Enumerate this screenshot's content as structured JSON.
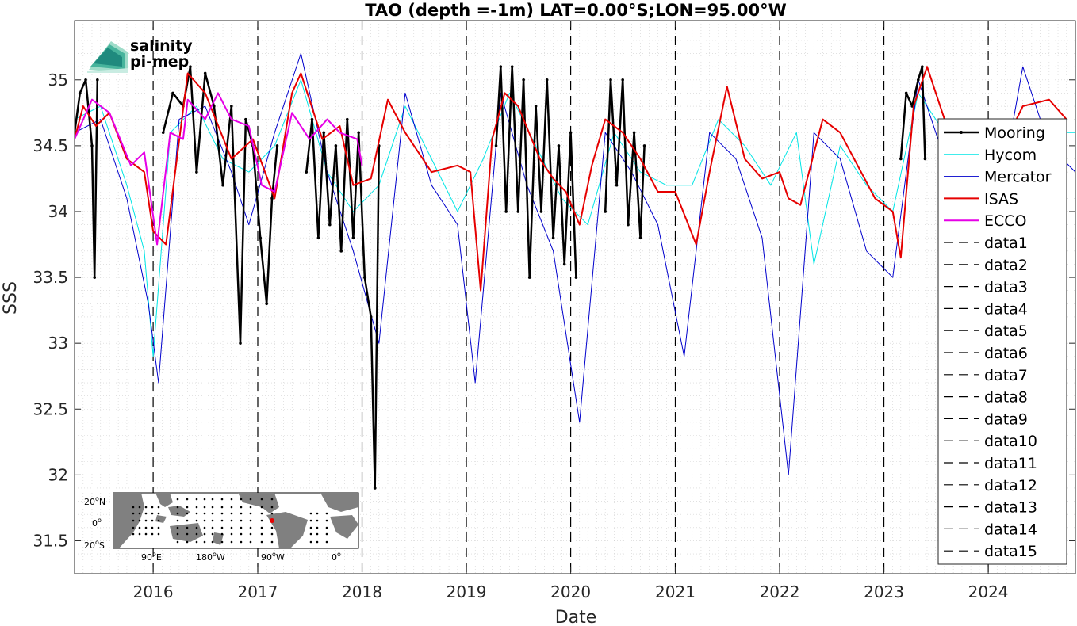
{
  "chart_data": {
    "type": "line",
    "title": "TAO (depth =-1m) LAT=0.00°S;LON=95.00°W",
    "xlabel": "Date",
    "ylabel": "SSS",
    "xlim": [
      "2015-04-01",
      "2024-11-01"
    ],
    "ylim": [
      31.25,
      35.45
    ],
    "grid": "on (dotted, minor)",
    "x_ticks": [
      "2016",
      "2017",
      "2018",
      "2019",
      "2020",
      "2021",
      "2022",
      "2023",
      "2024"
    ],
    "y_ticks": [
      "31.5",
      "32",
      "32.5",
      "33",
      "33.5",
      "34",
      "34.5",
      "35"
    ],
    "legend_position": "right",
    "legend": [
      "Mooring",
      "Hycom",
      "Mercator",
      "ISAS",
      "ECCO",
      "data1",
      "data2",
      "data3",
      "data4",
      "data5",
      "data6",
      "data7",
      "data8",
      "data9",
      "data10",
      "data11",
      "data12",
      "data13",
      "data14",
      "data15"
    ],
    "vertical_lines": [
      "2016-01-01",
      "2017-01-01",
      "2018-01-01",
      "2019-01-01",
      "2020-01-01",
      "2021-01-01",
      "2022-01-01",
      "2023-01-01",
      "2024-01-01"
    ],
    "series": [
      {
        "name": "Mooring",
        "color": "#000000",
        "style": "thick line with dot markers",
        "segments": [
          [
            [
              "2015-04-01",
              34.6
            ],
            [
              "2015-04-20",
              34.9
            ],
            [
              "2015-05-10",
              35.0
            ],
            [
              "2015-06-01",
              34.5
            ],
            [
              "2015-06-10",
              33.5
            ],
            [
              "2015-06-20",
              35.0
            ]
          ],
          [
            [
              "2016-02-05",
              34.6
            ],
            [
              "2016-03-10",
              34.9
            ],
            [
              "2016-04-15",
              34.8
            ],
            [
              "2016-05-10",
              35.1
            ],
            [
              "2016-06-01",
              34.3
            ],
            [
              "2016-07-01",
              35.05
            ],
            [
              "2016-08-01",
              34.8
            ],
            [
              "2016-09-01",
              34.2
            ],
            [
              "2016-10-01",
              34.8
            ],
            [
              "2016-11-01",
              33.0
            ],
            [
              "2016-11-20",
              34.7
            ],
            [
              "2016-12-15",
              34.5
            ],
            [
              "2017-01-10",
              33.8
            ],
            [
              "2017-02-01",
              33.3
            ],
            [
              "2017-02-20",
              34.1
            ],
            [
              "2017-03-10",
              34.5
            ]
          ],
          [
            [
              "2017-06-20",
              34.3
            ],
            [
              "2017-07-10",
              34.7
            ],
            [
              "2017-08-01",
              33.8
            ],
            [
              "2017-08-20",
              34.6
            ],
            [
              "2017-09-10",
              33.9
            ],
            [
              "2017-10-01",
              34.5
            ],
            [
              "2017-10-20",
              33.7
            ],
            [
              "2017-11-10",
              34.7
            ],
            [
              "2017-12-01",
              33.8
            ],
            [
              "2017-12-20",
              34.6
            ],
            [
              "2018-01-10",
              33.5
            ],
            [
              "2018-02-01",
              33.2
            ],
            [
              "2018-02-15",
              31.9
            ],
            [
              "2018-03-01",
              34.5
            ]
          ],
          [
            [
              "2019-04-15",
              34.5
            ],
            [
              "2019-05-01",
              35.1
            ],
            [
              "2019-05-20",
              34.0
            ],
            [
              "2019-06-10",
              35.1
            ],
            [
              "2019-07-01",
              34.0
            ],
            [
              "2019-07-20",
              35.0
            ],
            [
              "2019-08-10",
              33.5
            ],
            [
              "2019-09-01",
              34.8
            ],
            [
              "2019-09-20",
              34.0
            ],
            [
              "2019-10-10",
              35.0
            ],
            [
              "2019-11-01",
              33.8
            ],
            [
              "2019-11-20",
              34.5
            ],
            [
              "2019-12-10",
              33.6
            ],
            [
              "2020-01-01",
              34.6
            ],
            [
              "2020-01-20",
              33.5
            ]
          ],
          [
            [
              "2020-05-01",
              34.0
            ],
            [
              "2020-05-20",
              35.0
            ],
            [
              "2020-06-10",
              34.2
            ],
            [
              "2020-07-01",
              35.0
            ],
            [
              "2020-07-20",
              33.9
            ],
            [
              "2020-08-10",
              34.6
            ],
            [
              "2020-09-01",
              33.8
            ],
            [
              "2020-09-15",
              34.5
            ]
          ],
          [
            [
              "2023-03-01",
              34.4
            ],
            [
              "2023-03-20",
              34.9
            ],
            [
              "2023-04-10",
              34.8
            ],
            [
              "2023-05-01",
              35.0
            ],
            [
              "2023-05-15",
              35.1
            ],
            [
              "2023-05-25",
              34.4
            ]
          ]
        ]
      },
      {
        "name": "Hycom",
        "color": "#00e5e5",
        "values": [
          [
            "2015-04-01",
            34.7
          ],
          [
            "2015-07-01",
            34.8
          ],
          [
            "2015-10-01",
            34.2
          ],
          [
            "2015-12-01",
            33.7
          ],
          [
            "2016-01-01",
            32.9
          ],
          [
            "2016-03-01",
            34.6
          ],
          [
            "2016-06-01",
            34.8
          ],
          [
            "2016-09-01",
            34.4
          ],
          [
            "2016-12-01",
            34.3
          ],
          [
            "2017-03-01",
            34.5
          ],
          [
            "2017-06-01",
            35.0
          ],
          [
            "2017-09-01",
            34.3
          ],
          [
            "2017-12-01",
            34.0
          ],
          [
            "2018-03-01",
            34.2
          ],
          [
            "2018-06-01",
            34.8
          ],
          [
            "2018-09-01",
            34.4
          ],
          [
            "2018-12-01",
            34.0
          ],
          [
            "2019-03-01",
            34.4
          ],
          [
            "2019-06-01",
            34.9
          ],
          [
            "2019-09-01",
            34.5
          ],
          [
            "2019-12-01",
            34.1
          ],
          [
            "2020-03-01",
            33.9
          ],
          [
            "2020-06-01",
            34.6
          ],
          [
            "2020-09-01",
            34.3
          ],
          [
            "2020-12-01",
            34.2
          ],
          [
            "2021-03-01",
            34.2
          ],
          [
            "2021-06-01",
            34.7
          ],
          [
            "2021-09-01",
            34.5
          ],
          [
            "2021-12-01",
            34.2
          ],
          [
            "2022-03-01",
            34.6
          ],
          [
            "2022-05-01",
            33.6
          ],
          [
            "2022-08-01",
            34.5
          ],
          [
            "2022-11-01",
            34.2
          ],
          [
            "2023-02-01",
            34.0
          ],
          [
            "2023-05-01",
            34.9
          ],
          [
            "2023-08-01",
            34.6
          ],
          [
            "2023-11-01",
            34.4
          ],
          [
            "2024-02-01",
            34.3
          ],
          [
            "2024-05-01",
            34.7
          ],
          [
            "2024-08-01",
            34.6
          ],
          [
            "2024-11-01",
            34.6
          ]
        ]
      },
      {
        "name": "Mercator",
        "color": "#0000cc",
        "values": [
          [
            "2015-04-01",
            34.6
          ],
          [
            "2015-07-01",
            34.7
          ],
          [
            "2015-10-01",
            34.1
          ],
          [
            "2015-12-15",
            33.3
          ],
          [
            "2016-01-20",
            32.7
          ],
          [
            "2016-04-01",
            34.7
          ],
          [
            "2016-07-01",
            34.8
          ],
          [
            "2016-10-01",
            34.3
          ],
          [
            "2016-12-01",
            33.9
          ],
          [
            "2017-03-01",
            34.6
          ],
          [
            "2017-06-01",
            35.2
          ],
          [
            "2017-09-01",
            34.3
          ],
          [
            "2017-12-01",
            33.7
          ],
          [
            "2018-03-01",
            33.0
          ],
          [
            "2018-06-01",
            34.9
          ],
          [
            "2018-09-01",
            34.2
          ],
          [
            "2018-12-01",
            33.9
          ],
          [
            "2019-02-01",
            32.7
          ],
          [
            "2019-05-01",
            34.9
          ],
          [
            "2019-08-01",
            34.2
          ],
          [
            "2019-11-01",
            33.7
          ],
          [
            "2020-02-01",
            32.4
          ],
          [
            "2020-05-01",
            34.6
          ],
          [
            "2020-08-01",
            34.3
          ],
          [
            "2020-11-01",
            33.9
          ],
          [
            "2021-02-01",
            32.9
          ],
          [
            "2021-05-01",
            34.6
          ],
          [
            "2021-08-01",
            34.4
          ],
          [
            "2021-11-01",
            33.8
          ],
          [
            "2022-02-01",
            32.0
          ],
          [
            "2022-05-01",
            34.6
          ],
          [
            "2022-08-01",
            34.4
          ],
          [
            "2022-11-01",
            33.7
          ],
          [
            "2023-02-01",
            33.5
          ],
          [
            "2023-05-01",
            35.0
          ],
          [
            "2023-08-01",
            34.4
          ],
          [
            "2023-11-01",
            33.8
          ],
          [
            "2024-02-01",
            34.0
          ],
          [
            "2024-05-01",
            35.1
          ],
          [
            "2024-08-01",
            34.5
          ],
          [
            "2024-11-01",
            34.3
          ]
        ]
      },
      {
        "name": "ISAS",
        "color": "#e60000",
        "values": [
          [
            "2015-04-01",
            34.55
          ],
          [
            "2015-05-01",
            34.8
          ],
          [
            "2015-06-15",
            34.65
          ],
          [
            "2015-08-01",
            34.75
          ],
          [
            "2015-10-01",
            34.4
          ],
          [
            "2015-12-01",
            34.3
          ],
          [
            "2016-01-01",
            33.85
          ],
          [
            "2016-02-15",
            33.75
          ],
          [
            "2016-05-01",
            35.05
          ],
          [
            "2016-07-01",
            34.9
          ],
          [
            "2016-10-01",
            34.4
          ],
          [
            "2016-12-15",
            34.55
          ],
          [
            "2017-03-01",
            34.1
          ],
          [
            "2017-05-01",
            34.9
          ],
          [
            "2017-06-01",
            35.05
          ],
          [
            "2017-08-15",
            34.55
          ],
          [
            "2017-10-15",
            34.65
          ],
          [
            "2017-12-01",
            34.2
          ],
          [
            "2018-02-01",
            34.25
          ],
          [
            "2018-04-01",
            34.85
          ],
          [
            "2018-06-01",
            34.6
          ],
          [
            "2018-09-01",
            34.3
          ],
          [
            "2018-12-01",
            34.35
          ],
          [
            "2019-01-15",
            34.3
          ],
          [
            "2019-02-20",
            33.4
          ],
          [
            "2019-04-01",
            34.55
          ],
          [
            "2019-05-15",
            34.9
          ],
          [
            "2019-07-01",
            34.8
          ],
          [
            "2019-09-15",
            34.4
          ],
          [
            "2019-11-01",
            34.25
          ],
          [
            "2019-12-15",
            34.15
          ],
          [
            "2020-02-01",
            33.9
          ],
          [
            "2020-03-15",
            34.35
          ],
          [
            "2020-05-01",
            34.7
          ],
          [
            "2020-07-01",
            34.6
          ],
          [
            "2020-09-01",
            34.4
          ],
          [
            "2020-11-01",
            34.15
          ],
          [
            "2021-01-01",
            34.15
          ],
          [
            "2021-03-15",
            33.75
          ],
          [
            "2021-05-01",
            34.3
          ],
          [
            "2021-07-01",
            34.95
          ],
          [
            "2021-09-01",
            34.4
          ],
          [
            "2021-11-01",
            34.25
          ],
          [
            "2022-01-01",
            34.3
          ],
          [
            "2022-02-01",
            34.1
          ],
          [
            "2022-03-15",
            34.05
          ],
          [
            "2022-06-01",
            34.7
          ],
          [
            "2022-08-01",
            34.6
          ],
          [
            "2022-10-01",
            34.35
          ],
          [
            "2022-12-01",
            34.1
          ],
          [
            "2023-02-01",
            34.0
          ],
          [
            "2023-03-01",
            33.65
          ],
          [
            "2023-04-15",
            34.8
          ],
          [
            "2023-06-01",
            35.1
          ],
          [
            "2023-08-01",
            34.7
          ],
          [
            "2023-11-01",
            34.5
          ],
          [
            "2024-02-01",
            34.4
          ],
          [
            "2024-05-01",
            34.8
          ],
          [
            "2024-08-01",
            34.85
          ],
          [
            "2024-10-01",
            34.7
          ]
        ]
      },
      {
        "name": "ECCO",
        "color": "#e600e6",
        "values": [
          [
            "2015-04-01",
            34.55
          ],
          [
            "2015-06-01",
            34.85
          ],
          [
            "2015-08-01",
            34.75
          ],
          [
            "2015-10-15",
            34.35
          ],
          [
            "2015-12-01",
            34.45
          ],
          [
            "2016-01-15",
            33.75
          ],
          [
            "2016-03-01",
            34.6
          ],
          [
            "2016-04-15",
            34.55
          ],
          [
            "2016-05-01",
            34.85
          ],
          [
            "2016-07-01",
            34.7
          ],
          [
            "2016-08-15",
            34.9
          ],
          [
            "2016-10-01",
            34.7
          ],
          [
            "2016-12-01",
            34.65
          ],
          [
            "2017-01-15",
            34.2
          ],
          [
            "2017-03-01",
            34.15
          ],
          [
            "2017-05-01",
            34.75
          ],
          [
            "2017-07-01",
            34.55
          ],
          [
            "2017-09-01",
            34.7
          ],
          [
            "2017-10-15",
            34.6
          ],
          [
            "2017-12-15",
            34.55
          ],
          [
            "2018-01-01",
            34.35
          ]
        ]
      }
    ]
  },
  "logo": {
    "line1": "salinity",
    "line2": "pi-mep",
    "color1": "#1aa095",
    "color2": "#137268"
  },
  "inset_map": {
    "lat_labels": [
      "20",
      "N",
      "0",
      "",
      "20",
      "S"
    ],
    "lon_labels": [
      "90",
      "E",
      "180",
      "W",
      "90",
      "W",
      "0",
      ""
    ],
    "degree_symbol": "o",
    "marker_color": "#e60000",
    "land_color": "#808080"
  }
}
